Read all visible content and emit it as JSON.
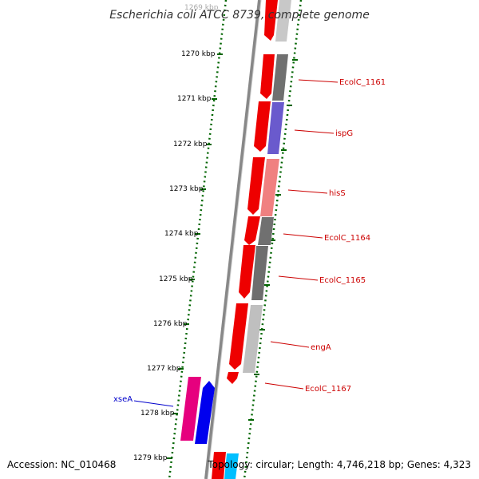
{
  "title": "Escherichia coli ATCC 8739, complete genome",
  "footer": {
    "accession": "Accession: NC_010468",
    "topology": "Topology: circular; Length: 4,746,218 bp; Genes: 4,323"
  },
  "ticks": [
    {
      "label": "1269 kbp"
    },
    {
      "label": "1270 kbp"
    },
    {
      "label": "1271 kbp"
    },
    {
      "label": "1272 kbp"
    },
    {
      "label": "1273 kbp"
    },
    {
      "label": "1274 kbp"
    },
    {
      "label": "1275 kbp"
    },
    {
      "label": "1276 kbp"
    },
    {
      "label": "1277 kbp"
    },
    {
      "label": "1278 kbp"
    },
    {
      "label": "1279 kbp"
    }
  ],
  "gene_labels": [
    {
      "name": "EcolC_1161",
      "color": "#cc0000"
    },
    {
      "name": "ispG",
      "color": "#cc0000"
    },
    {
      "name": "hisS",
      "color": "#cc0000"
    },
    {
      "name": "EcolC_1164",
      "color": "#cc0000"
    },
    {
      "name": "EcolC_1165",
      "color": "#cc0000"
    },
    {
      "name": "engA",
      "color": "#cc0000"
    },
    {
      "name": "EcolC_1167",
      "color": "#cc0000"
    },
    {
      "name": "xseA",
      "color": "#0000cc"
    }
  ],
  "colors": {
    "forward_cds": "#ff0000",
    "cog_gray": "#707070",
    "cog_light_gray": "#bfbfbf",
    "cog_purple": "#6a5acd",
    "cog_salmon": "#f08080",
    "reverse_cds": "#0000ff",
    "cog_magenta": "#e6007e",
    "cog_cyan": "#00bfff",
    "backbone": "#888888",
    "tick_green": "#006400"
  }
}
